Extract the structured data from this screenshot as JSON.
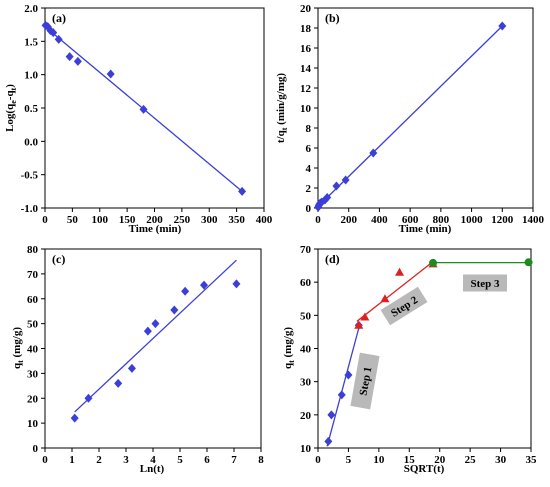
{
  "chart_data": [
    {
      "type": "scatter",
      "panel_label": "(a)",
      "xlabel": "Time (min)",
      "ylabel": "Log(q",
      "ylabel_sub1": "e",
      "ylabel_mid": "-q",
      "ylabel_sub2": "t",
      "ylabel_end": ")",
      "xlim": [
        0,
        400
      ],
      "ylim": [
        -1,
        2
      ],
      "xticks": [
        0,
        50,
        100,
        150,
        200,
        250,
        300,
        350,
        400
      ],
      "yticks": [
        -1,
        -0.5,
        0,
        0.5,
        1,
        1.5,
        2
      ],
      "marker_color": "#3B3FD8",
      "line_color": "#3B3FD8",
      "x": [
        1,
        5,
        10,
        15,
        25,
        45,
        60,
        120,
        180,
        360
      ],
      "y": [
        1.74,
        1.72,
        1.66,
        1.63,
        1.53,
        1.27,
        1.2,
        1.01,
        0.48,
        -0.75
      ],
      "fit": [
        [
          0,
          1.72
        ],
        [
          360,
          -0.75
        ]
      ]
    },
    {
      "type": "scatter",
      "panel_label": "(b)",
      "xlabel": "Time (min)",
      "ylabel": "t/q",
      "ylabel_sub1": "t",
      "ylabel_end": " (min/g/mg)",
      "xlim": [
        0,
        1400
      ],
      "ylim": [
        0,
        20
      ],
      "xticks": [
        0,
        200,
        400,
        600,
        800,
        1000,
        1200,
        1400
      ],
      "yticks": [
        0,
        2,
        4,
        6,
        8,
        10,
        12,
        14,
        16,
        18,
        20
      ],
      "marker_color": "#3B3FD8",
      "line_color": "#3B3FD8",
      "x": [
        1,
        5,
        10,
        15,
        25,
        45,
        60,
        120,
        180,
        360,
        1200
      ],
      "y": [
        0.08,
        0.25,
        0.4,
        0.5,
        0.6,
        0.8,
        1.05,
        2.2,
        2.8,
        5.5,
        18.2
      ],
      "fit": [
        [
          0,
          0.15
        ],
        [
          1200,
          18.2
        ]
      ]
    },
    {
      "type": "scatter",
      "panel_label": "(c)",
      "xlabel": "Ln(t)",
      "ylabel": "q",
      "ylabel_sub1": "t",
      "ylabel_end": " (mg/g)",
      "xlim": [
        0,
        8
      ],
      "ylim": [
        0,
        80
      ],
      "xticks": [
        0,
        1,
        2,
        3,
        4,
        5,
        6,
        7,
        8
      ],
      "yticks": [
        0,
        10,
        20,
        30,
        40,
        50,
        60,
        70,
        80
      ],
      "marker_color": "#3B3FD8",
      "line_color": "#3B3FD8",
      "x": [
        1.1,
        1.61,
        2.71,
        3.22,
        3.81,
        4.09,
        4.79,
        5.19,
        5.89,
        7.09
      ],
      "y": [
        12,
        20,
        26,
        32,
        47,
        50,
        55.5,
        63,
        65.5,
        66
      ],
      "fit": [
        [
          1.1,
          14.5
        ],
        [
          7.09,
          75.5
        ]
      ]
    },
    {
      "type": "scatter",
      "panel_label": "(d)",
      "xlabel": "SQRT(t)",
      "ylabel": "q",
      "ylabel_sub1": "t",
      "ylabel_end": " (mg/g)",
      "xlim": [
        0,
        35
      ],
      "ylim": [
        10,
        70
      ],
      "xticks": [
        0,
        5,
        10,
        15,
        20,
        25,
        30,
        35
      ],
      "yticks": [
        10,
        20,
        30,
        40,
        50,
        60,
        70
      ],
      "series": [
        {
          "marker": "diamond",
          "color": "#3B3FD8",
          "x": [
            1.7,
            2.2,
            3.9,
            5.0,
            6.7
          ],
          "y": [
            12,
            20,
            26,
            32,
            47
          ],
          "fit": [
            [
              1.5,
              10.5
            ],
            [
              6.9,
              47.5
            ]
          ]
        },
        {
          "marker": "triangle",
          "color": "#E02020",
          "x": [
            6.7,
            7.7,
            11.0,
            13.4,
            18.9
          ],
          "y": [
            47,
            49.5,
            55,
            63,
            65.5
          ],
          "fit": [
            [
              6.4,
              48.2
            ],
            [
              18.9,
              66.2
            ]
          ]
        },
        {
          "marker": "circle",
          "color": "#1F8A1F",
          "x": [
            18.9,
            34.6
          ],
          "y": [
            65.8,
            66
          ],
          "fit": [
            [
              18.9,
              65.9
            ],
            [
              34.6,
              65.9
            ]
          ]
        }
      ],
      "annotations": [
        "Step 1",
        "Step 2",
        "Step 3"
      ]
    }
  ]
}
